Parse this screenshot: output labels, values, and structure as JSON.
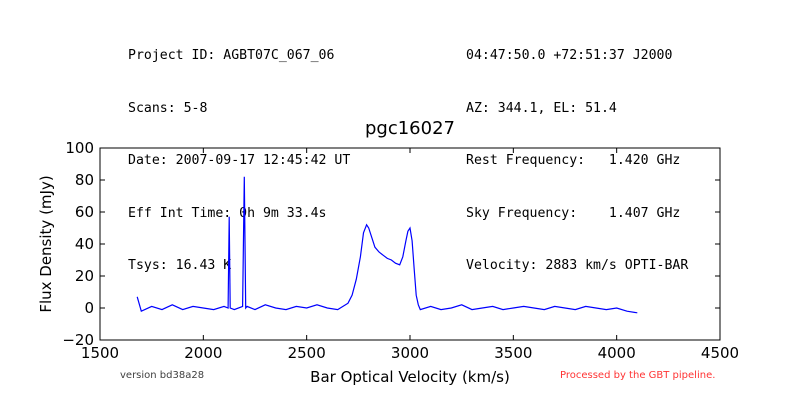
{
  "header": {
    "left_lines": [
      "Project ID: AGBT07C_067_06",
      "Scans: 5-8",
      "Date: 2007-09-17 12:45:42 UT",
      "Eff Int Time: 0h 9m 33.4s",
      "Tsys: 16.43 K"
    ],
    "right_lines": [
      "04:47:50.0 +72:51:37 J2000",
      "AZ: 344.1, EL: 51.4",
      "Rest Frequency:   1.420 GHz",
      "Sky Frequency:    1.407 GHz",
      "Velocity: 2883 km/s OPTI-BAR"
    ]
  },
  "footer": {
    "version": "version bd38a28",
    "processed": "Processed by the GBT pipeline."
  },
  "colors": {
    "series": "#0000ff",
    "processed": "#ff3333"
  },
  "chart_data": {
    "type": "line",
    "title": "pgc16027",
    "xlabel": "Bar Optical Velocity (km/s)",
    "ylabel": "Flux Density (mJy)",
    "xlim": [
      1500,
      4500
    ],
    "ylim": [
      -20,
      100
    ],
    "xticks": [
      1500,
      2000,
      2500,
      3000,
      3500,
      4000,
      4500
    ],
    "yticks": [
      -20,
      0,
      20,
      40,
      60,
      80,
      100
    ],
    "grid": false,
    "series": [
      {
        "x": [
          1680,
          1700,
          1750,
          1800,
          1850,
          1900,
          1950,
          2000,
          2050,
          2100,
          2120,
          2125,
          2130,
          2150,
          2190,
          2198,
          2205,
          2212,
          2250,
          2300,
          2350,
          2400,
          2450,
          2500,
          2550,
          2600,
          2650,
          2700,
          2720,
          2740,
          2760,
          2775,
          2790,
          2800,
          2815,
          2830,
          2850,
          2870,
          2890,
          2910,
          2930,
          2950,
          2965,
          2980,
          2990,
          3000,
          3010,
          3020,
          3030,
          3040,
          3050,
          3100,
          3150,
          3200,
          3250,
          3300,
          3350,
          3400,
          3450,
          3500,
          3550,
          3600,
          3650,
          3700,
          3750,
          3800,
          3850,
          3900,
          3950,
          4000,
          4050,
          4100
        ],
        "y": [
          7,
          -2,
          1,
          -1,
          2,
          -1,
          1,
          0,
          -1,
          1,
          0,
          57,
          0,
          -1,
          1,
          82,
          0,
          1,
          -1,
          2,
          0,
          -1,
          1,
          0,
          2,
          0,
          -1,
          3,
          8,
          18,
          32,
          47,
          52,
          50,
          44,
          38,
          35,
          33,
          31,
          30,
          28,
          27,
          32,
          42,
          48,
          50,
          42,
          25,
          8,
          2,
          -1,
          1,
          -1,
          0,
          2,
          -1,
          0,
          1,
          -1,
          0,
          1,
          0,
          -1,
          1,
          0,
          -1,
          1,
          0,
          -1,
          0,
          -2,
          -3
        ]
      }
    ]
  }
}
